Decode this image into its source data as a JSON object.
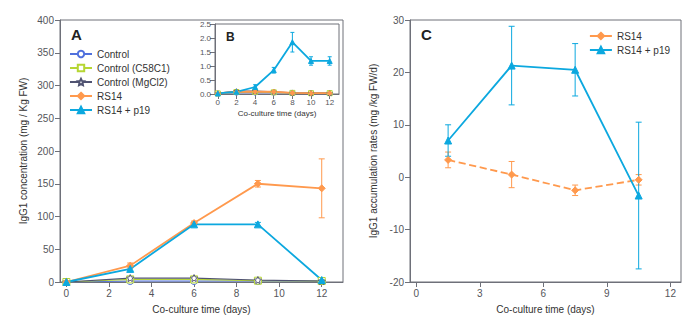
{
  "chart_data": [
    {
      "type": "line",
      "title": "A",
      "x": [
        0,
        3,
        6,
        9,
        12
      ],
      "xlabel": "Co-culture time (days)",
      "ylabel": "IgG1 concentration (mg / Kg FW)",
      "xlim": [
        -0.3,
        13
      ],
      "xticks": [
        0,
        2,
        4,
        6,
        8,
        10,
        12
      ],
      "ylim": [
        0,
        400
      ],
      "yticks": [
        0,
        50,
        100,
        150,
        200,
        250,
        300,
        350,
        400
      ],
      "grid": false,
      "legend": "upper left",
      "series": [
        {
          "name": "Control",
          "marker": "circle_open",
          "line_style": "solid",
          "values": [
            0,
            1.5,
            1.5,
            1.5,
            1.5
          ],
          "yerr": [
            0,
            0.4,
            0.4,
            0.4,
            0.4
          ]
        },
        {
          "name": "Control (C58C1)",
          "marker": "square_open",
          "line_style": "solid",
          "values": [
            0,
            4,
            4,
            2,
            1.5
          ],
          "yerr": [
            0,
            0.8,
            0.8,
            0.4,
            0.4
          ]
        },
        {
          "name": "Control (MgCl2)",
          "marker": "star_open",
          "line_style": "solid",
          "values": [
            0,
            6,
            6,
            3,
            1.5
          ],
          "yerr": [
            0,
            0.8,
            0.8,
            0.4,
            0.4
          ]
        },
        {
          "name": "RS14",
          "marker": "diamond",
          "line_style": "solid",
          "values": [
            0,
            25,
            90,
            150,
            143
          ],
          "yerr": [
            0,
            4,
            3,
            5,
            45
          ]
        },
        {
          "name": "RS14 + p19",
          "marker": "triangle",
          "line_style": "solid",
          "values": [
            0,
            20,
            88,
            88,
            3
          ],
          "yerr": [
            0,
            3,
            3,
            3,
            1
          ]
        }
      ]
    },
    {
      "type": "line",
      "title": "B",
      "x": [
        0,
        2,
        4,
        6,
        8,
        10,
        12
      ],
      "xlabel": "Co-culture time (days)",
      "xlim": [
        -0.3,
        13
      ],
      "xticks": [
        0,
        2,
        4,
        6,
        8,
        10,
        12
      ],
      "ylim": [
        0,
        2.5
      ],
      "yticks": [
        {
          "value": 0.0,
          "label": "0.0"
        },
        0.5,
        {
          "value": 1.0,
          "label": "1.0"
        },
        1.5,
        {
          "value": 2.0,
          "label": "2.0"
        },
        2.5
      ],
      "grid": false,
      "series": [
        {
          "name": "Control",
          "marker": "circle_open",
          "line_style": "solid",
          "values": [
            0.02,
            0.05,
            0.05,
            0.05,
            0.04,
            0.03,
            0.03
          ],
          "yerr": [
            0.01,
            0.02,
            0.02,
            0.02,
            0.02,
            0.01,
            0.01
          ]
        },
        {
          "name": "Control (C58C1)",
          "marker": "square_open",
          "line_style": "solid",
          "values": [
            0.02,
            0.07,
            0.08,
            0.06,
            0.04,
            0.03,
            0.03
          ],
          "yerr": [
            0.01,
            0.03,
            0.03,
            0.02,
            0.02,
            0.01,
            0.01
          ]
        },
        {
          "name": "Control (MgCl2)",
          "marker": "star_open",
          "line_style": "solid",
          "values": [
            0.02,
            0.1,
            0.1,
            0.08,
            0.04,
            0.03,
            0.03
          ],
          "yerr": [
            0.01,
            0.04,
            0.04,
            0.03,
            0.02,
            0.01,
            0.01
          ]
        },
        {
          "name": "RS14",
          "marker": "diamond",
          "line_style": "solid",
          "values": [
            0.02,
            0.08,
            0.08,
            0.08,
            0.04,
            0.03,
            0.03
          ],
          "yerr": [
            0.01,
            0.03,
            0.03,
            0.03,
            0.02,
            0.01,
            0.01
          ]
        },
        {
          "name": "RS14 + p19",
          "marker": "triangle",
          "line_style": "solid",
          "values": [
            0.02,
            0.08,
            0.25,
            0.85,
            1.85,
            1.18,
            1.18
          ],
          "yerr": [
            0.01,
            0.04,
            0.08,
            0.1,
            0.35,
            0.15,
            0.15
          ]
        }
      ]
    },
    {
      "type": "line",
      "title": "C",
      "x": [
        1.5,
        4.5,
        7.5,
        10.5
      ],
      "xlabel": "Co-culture time (days)",
      "ylabel": "IgG1 accumulation rates (mg /kg FW/d)",
      "xlim": [
        -0.3,
        12.5
      ],
      "xticks": [
        0,
        3,
        6,
        9,
        12
      ],
      "ylim": [
        -20,
        30
      ],
      "yticks": [
        -20,
        -10,
        0,
        10,
        20,
        30
      ],
      "grid": false,
      "legend": "upper right",
      "series": [
        {
          "name": "RS14",
          "marker": "diamond",
          "line_style": "dashed",
          "values": [
            3.3,
            0.5,
            -2.5,
            -0.5
          ],
          "yerr": [
            1.5,
            2.5,
            1.0,
            1.0
          ]
        },
        {
          "name": "RS14 + p19",
          "marker": "triangle",
          "line_style": "solid",
          "values": [
            7.0,
            21.3,
            20.5,
            -3.5
          ],
          "yerr": [
            3.0,
            7.5,
            5.0,
            14.0
          ]
        }
      ]
    }
  ]
}
